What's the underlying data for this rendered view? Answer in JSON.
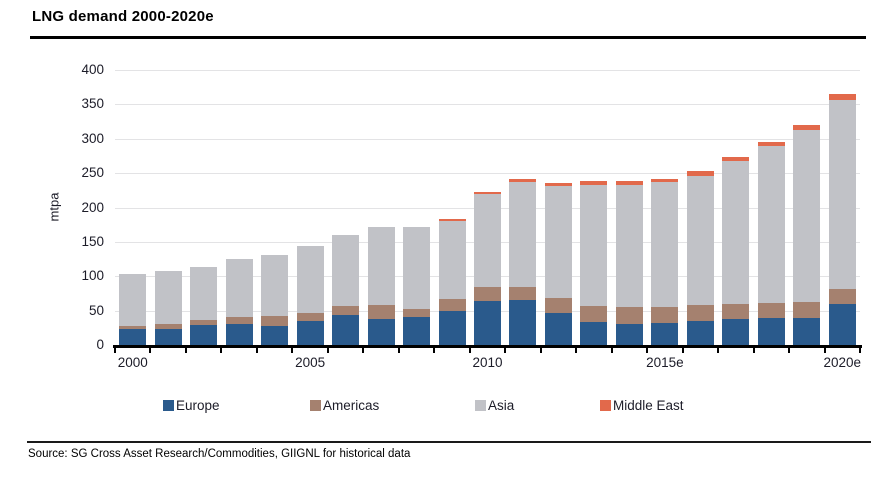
{
  "header": {
    "title": "LNG demand 2000-2020e"
  },
  "source_line": "Source: SG Cross Asset Research/Commodities, GIIGNL for historical data",
  "chart_data": {
    "type": "bar",
    "stacked": true,
    "title": "LNG demand 2000-2020e",
    "xlabel": "",
    "ylabel": "mtpa",
    "ylim": [
      0,
      400
    ],
    "ytick_step": 50,
    "grid": true,
    "legend_position": "bottom",
    "categories": [
      "2000",
      "2001",
      "2002",
      "2003",
      "2004",
      "2005",
      "2006",
      "2007",
      "2008",
      "2009",
      "2010",
      "2011",
      "2012",
      "2013",
      "2014",
      "2015e",
      "2016",
      "2017",
      "2018",
      "2019",
      "2020e"
    ],
    "x_axis_labels_shown": [
      "2000",
      "2005",
      "2010",
      "2015e",
      "2020e"
    ],
    "series": [
      {
        "name": "Europe",
        "color": "#2A5A8C",
        "values": [
          24,
          24,
          29,
          31,
          28,
          35,
          43,
          38,
          41,
          50,
          64,
          65,
          47,
          33,
          31,
          32,
          35,
          38,
          39,
          40,
          59
        ]
      },
      {
        "name": "Americas",
        "color": "#A5816F",
        "values": [
          4,
          7,
          8,
          10,
          14,
          12,
          14,
          20,
          12,
          17,
          20,
          20,
          21,
          24,
          25,
          24,
          23,
          21,
          22,
          23,
          23
        ]
      },
      {
        "name": "Asia",
        "color": "#C1C2C7",
        "values": [
          75,
          77,
          77,
          84,
          89,
          97,
          103,
          114,
          119,
          114,
          135,
          152,
          163,
          176,
          177,
          181,
          188,
          208,
          229,
          250,
          275
        ]
      },
      {
        "name": "Middle East",
        "color": "#E2694B",
        "values": [
          0,
          0,
          0,
          0,
          0,
          0,
          0,
          0,
          0,
          3,
          3,
          4,
          5,
          5,
          5,
          5,
          7,
          7,
          6,
          7,
          8
        ]
      }
    ],
    "totals_estimated": [
      103,
      108,
      114,
      125,
      131,
      144,
      160,
      172,
      172,
      184,
      222,
      241,
      236,
      238,
      238,
      242,
      253,
      274,
      296,
      320,
      365
    ]
  }
}
